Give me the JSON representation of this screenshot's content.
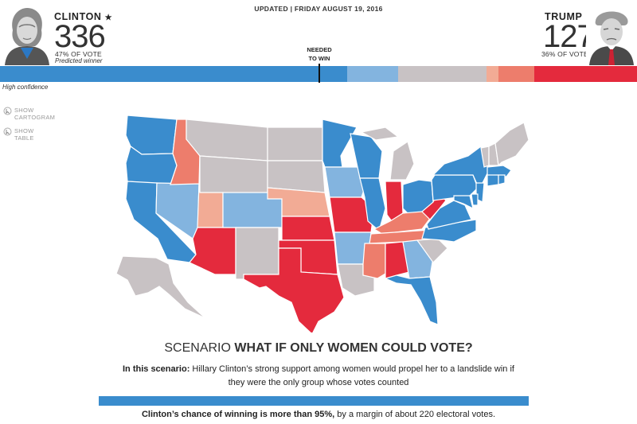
{
  "header": {
    "updated": "UPDATED | FRIDAY AUGUST 19, 2016",
    "needed_line1": "NEEDED",
    "needed_line2": "TO WIN",
    "confidence": "High confidence"
  },
  "clinton": {
    "name": "CLINTON",
    "star": "★",
    "electoral_votes": "336",
    "vote_share": "47% OF VOTE",
    "status": "Predicted winner"
  },
  "trump": {
    "name": "TRUMP",
    "electoral_votes": "127",
    "vote_share": "36% OF VOTE"
  },
  "controls": {
    "cartogram_line1": "SHOW",
    "cartogram_line2": "CARTOGRAM",
    "table_line1": "SHOW",
    "table_line2": "TABLE"
  },
  "colors": {
    "safe_dem": "#3a8ccd",
    "lean_dem": "#83b4df",
    "tossup": "#c8c2c4",
    "lean_rep": "#f2ab95",
    "likely_rep": "#ed7d6c",
    "safe_rep": "#e42a3d"
  },
  "electoral_bar": [
    {
      "category": "safe_dem",
      "votes": 293
    },
    {
      "category": "lean_dem",
      "votes": 43
    },
    {
      "category": "tossup",
      "votes": 75
    },
    {
      "category": "lean_rep",
      "votes": 10
    },
    {
      "category": "likely_rep",
      "votes": 30
    },
    {
      "category": "safe_rep",
      "votes": 87
    }
  ],
  "states": {
    "WA": "safe_dem",
    "OR": "safe_dem",
    "CA": "safe_dem",
    "NV": "lean_dem",
    "ID": "likely_rep",
    "MT": "tossup",
    "WY": "tossup",
    "UT": "lean_rep",
    "AZ": "safe_rep",
    "CO": "lean_dem",
    "NM": "tossup",
    "ND": "tossup",
    "SD": "tossup",
    "NE": "lean_rep",
    "KS": "safe_rep",
    "OK": "safe_rep",
    "TX": "safe_rep",
    "MN": "safe_dem",
    "IA": "lean_dem",
    "MO": "safe_rep",
    "AR": "lean_dem",
    "LA": "tossup",
    "WI": "safe_dem",
    "IL": "safe_dem",
    "MI": "tossup",
    "IN": "safe_rep",
    "OH": "safe_dem",
    "KY": "likely_rep",
    "TN": "likely_rep",
    "MS": "likely_rep",
    "AL": "safe_rep",
    "GA": "lean_dem",
    "FL": "safe_dem",
    "SC": "tossup",
    "NC": "safe_dem",
    "VA": "safe_dem",
    "WV": "safe_rep",
    "PA": "safe_dem",
    "NY": "safe_dem",
    "NJ": "safe_dem",
    "MD": "safe_dem",
    "DE": "safe_dem",
    "VT": "tossup",
    "NH": "tossup",
    "ME": "tossup",
    "MA": "safe_dem",
    "CT": "safe_dem",
    "RI": "safe_dem",
    "AK": "tossup"
  },
  "scenario": {
    "label": "SCENARIO",
    "question": "WHAT IF ONLY WOMEN COULD VOTE?",
    "intro": "In this scenario:",
    "body": "Hillary Clinton’s strong support among women would propel her to a landslide win if they were the only group whose votes counted",
    "chance_bold": "Clinton’s chance of winning is more than 95%,",
    "chance_rest": "by a margin of about 220 electoral votes."
  }
}
